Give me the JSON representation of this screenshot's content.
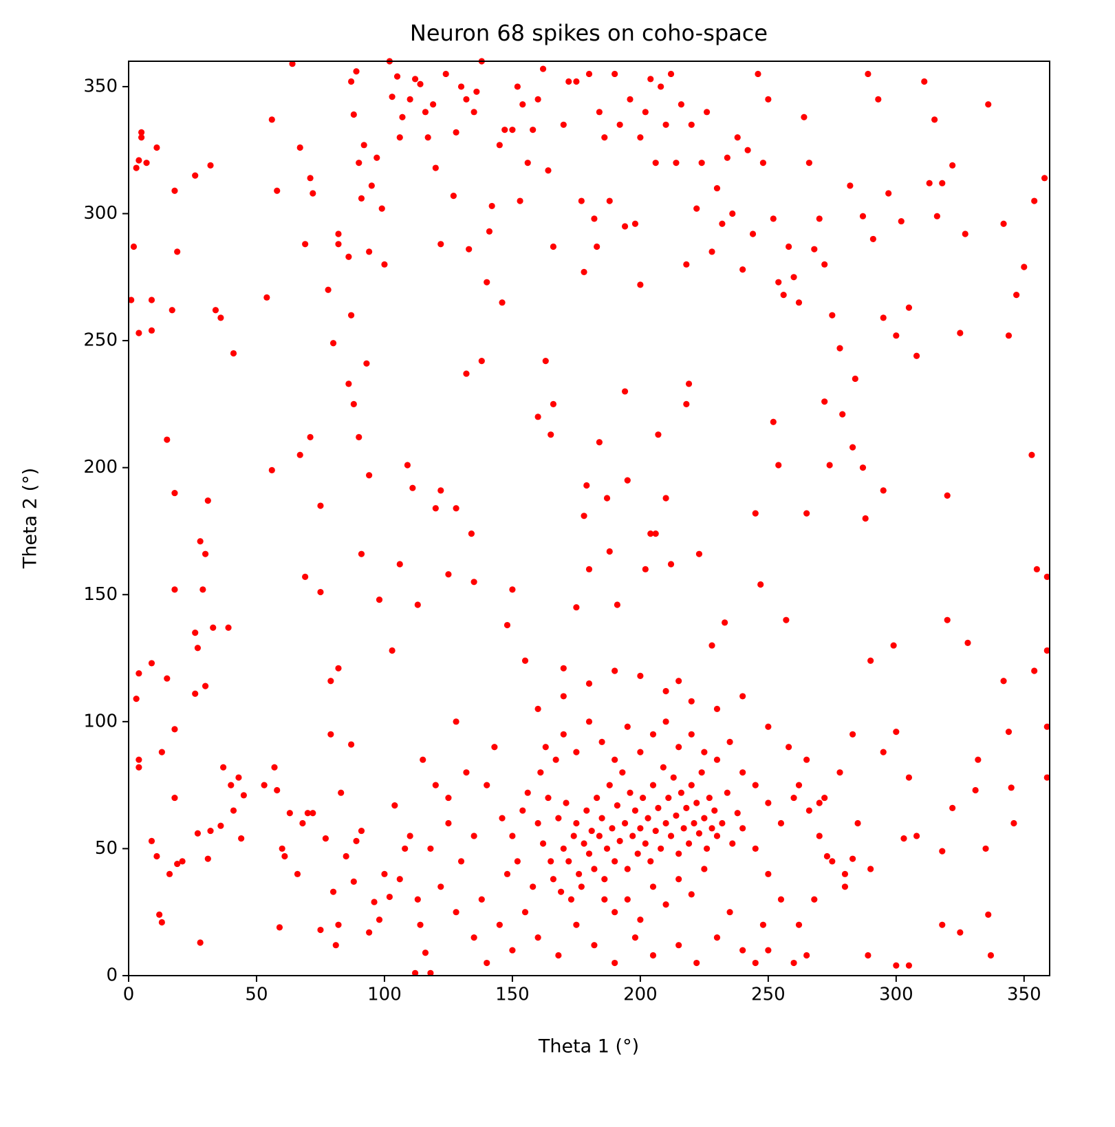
{
  "chart_data": {
    "type": "scatter",
    "title": "Neuron 68 spikes on coho-space",
    "x_label": "Theta 1 (°)",
    "y_label": "Theta 2 (°)",
    "color": "#ff0000",
    "xlim": [
      0,
      360
    ],
    "ylim": [
      0,
      360
    ],
    "xticks": [
      0,
      50,
      100,
      150,
      200,
      250,
      300,
      350
    ],
    "yticks": [
      0,
      50,
      100,
      150,
      200,
      250,
      300,
      350
    ],
    "grid": false,
    "x": [
      3,
      5,
      5,
      4,
      7,
      11,
      2,
      1,
      9,
      9,
      4,
      19,
      18,
      17,
      26,
      32,
      34,
      36,
      41,
      54,
      56,
      58,
      64,
      67,
      69,
      71,
      72,
      78,
      80,
      82,
      82,
      86,
      87,
      88,
      89,
      90,
      91,
      92,
      94,
      95,
      97,
      99,
      100,
      102,
      103,
      105,
      106,
      107,
      110,
      112,
      114,
      116,
      117,
      119,
      120,
      122,
      124,
      127,
      128,
      130,
      132,
      133,
      135,
      136,
      138,
      141,
      142,
      145,
      147,
      150,
      152,
      153,
      154,
      156,
      158,
      160,
      162,
      164,
      166,
      170,
      172,
      175,
      177,
      178,
      180,
      182,
      184,
      186,
      188,
      190,
      192,
      194,
      196,
      198,
      200,
      202,
      204,
      206,
      208,
      210,
      212,
      214,
      216,
      218,
      220,
      222,
      224,
      226,
      228,
      230,
      232,
      234,
      236,
      238,
      240,
      242,
      244,
      246,
      248,
      250,
      252,
      254,
      256,
      258,
      260,
      262,
      264,
      266,
      268,
      270,
      272,
      275,
      278,
      282,
      284,
      287,
      289,
      291,
      293,
      295,
      297,
      300,
      302,
      305,
      308,
      311,
      313,
      315,
      316,
      318,
      320,
      322,
      325,
      327,
      336,
      342,
      344,
      347,
      350,
      354,
      358,
      15,
      18,
      18,
      28,
      29,
      30,
      31,
      33,
      39,
      56,
      67,
      69,
      71,
      75,
      75,
      79,
      82,
      86,
      87,
      88,
      90,
      91,
      93,
      94,
      98,
      103,
      106,
      109,
      111,
      113,
      120,
      122,
      125,
      128,
      132,
      134,
      135,
      138,
      140,
      146,
      148,
      150,
      155,
      160,
      163,
      165,
      166,
      170,
      175,
      178,
      179,
      180,
      183,
      184,
      187,
      188,
      191,
      194,
      195,
      200,
      202,
      204,
      206,
      207,
      210,
      212,
      215,
      218,
      219,
      223,
      228,
      233,
      245,
      247,
      252,
      254,
      257,
      265,
      272,
      274,
      279,
      283,
      287,
      288,
      290,
      295,
      299,
      320,
      328,
      353,
      355,
      359,
      359,
      354,
      342,
      3,
      4,
      4,
      4,
      9,
      9,
      11,
      12,
      13,
      13,
      15,
      16,
      18,
      18,
      19,
      21,
      26,
      26,
      27,
      27,
      28,
      30,
      31,
      32,
      36,
      37,
      40,
      41,
      43,
      44,
      45,
      53,
      57,
      58,
      59,
      60,
      61,
      63,
      66,
      68,
      70,
      72,
      75,
      77,
      79,
      80,
      81,
      82,
      83,
      85,
      87,
      88,
      89,
      91,
      94,
      96,
      98,
      100,
      102,
      104,
      106,
      108,
      110,
      112,
      114,
      116,
      118,
      170,
      172,
      174,
      175,
      176,
      178,
      179,
      180,
      181,
      182,
      183,
      184,
      185,
      186,
      187,
      188,
      189,
      190,
      191,
      192,
      193,
      194,
      195,
      196,
      197,
      198,
      199,
      200,
      201,
      202,
      203,
      204,
      205,
      206,
      207,
      208,
      209,
      210,
      211,
      212,
      213,
      214,
      215,
      216,
      217,
      218,
      219,
      220,
      221,
      222,
      223,
      224,
      225,
      226,
      227,
      228,
      229,
      230,
      232,
      234,
      236,
      238,
      240,
      160,
      162,
      164,
      165,
      166,
      168,
      169,
      171,
      173,
      177,
      186,
      190,
      195,
      200,
      205,
      210,
      215,
      220,
      225,
      150,
      152,
      154,
      156,
      158,
      161,
      163,
      167,
      170,
      175,
      180,
      185,
      190,
      195,
      200,
      205,
      210,
      215,
      220,
      225,
      230,
      235,
      240,
      245,
      250,
      255,
      260,
      265,
      245,
      250,
      255,
      248,
      240,
      235,
      230,
      222,
      215,
      205,
      198,
      190,
      182,
      175,
      168,
      160,
      155,
      150,
      145,
      140,
      138,
      135,
      130,
      128,
      125,
      122,
      120,
      118,
      115,
      113,
      140,
      143,
      146,
      148,
      135,
      132,
      128,
      125,
      160,
      170,
      180,
      190,
      200,
      210,
      220,
      230,
      240,
      250,
      258,
      262,
      266,
      270,
      275,
      280,
      268,
      262,
      272,
      278,
      283,
      285,
      290,
      295,
      300,
      303,
      305,
      308,
      318,
      318,
      322,
      325,
      331,
      332,
      335,
      336,
      337,
      344,
      346,
      345,
      359,
      359,
      289,
      300,
      305,
      283,
      280,
      273,
      270,
      260,
      265,
      250,
      245
    ],
    "values": [
      318,
      330,
      332,
      321,
      320,
      326,
      287,
      266,
      266,
      254,
      253,
      285,
      309,
      262,
      315,
      319,
      262,
      259,
      245,
      267,
      337,
      309,
      359,
      326,
      288,
      314,
      308,
      270,
      249,
      292,
      288,
      283,
      352,
      339,
      356,
      320,
      306,
      327,
      285,
      311,
      322,
      302,
      280,
      360,
      346,
      354,
      330,
      338,
      345,
      353,
      351,
      340,
      330,
      343,
      318,
      288,
      355,
      307,
      332,
      350,
      345,
      286,
      340,
      348,
      360,
      293,
      303,
      327,
      333,
      333,
      350,
      305,
      343,
      320,
      333,
      345,
      357,
      317,
      287,
      335,
      352,
      352,
      305,
      277,
      355,
      298,
      340,
      330,
      305,
      355,
      335,
      295,
      345,
      296,
      330,
      340,
      353,
      320,
      350,
      335,
      355,
      320,
      343,
      280,
      335,
      302,
      320,
      340,
      285,
      310,
      296,
      322,
      300,
      330,
      278,
      325,
      292,
      355,
      320,
      345,
      298,
      273,
      268,
      287,
      275,
      265,
      338,
      320,
      286,
      298,
      280,
      260,
      247,
      311,
      235,
      299,
      355,
      290,
      345,
      259,
      308,
      252,
      297,
      263,
      244,
      352,
      312,
      337,
      299,
      312,
      189,
      319,
      253,
      292,
      343,
      296,
      252,
      268,
      279,
      305,
      314,
      211,
      190,
      152,
      171,
      152,
      166,
      187,
      137,
      137,
      199,
      205,
      157,
      212,
      185,
      151,
      116,
      121,
      233,
      260,
      225,
      212,
      166,
      241,
      197,
      148,
      128,
      162,
      201,
      192,
      146,
      184,
      191,
      158,
      184,
      237,
      174,
      155,
      242,
      273,
      265,
      138,
      152,
      124,
      220,
      242,
      213,
      225,
      121,
      145,
      181,
      193,
      160,
      287,
      210,
      188,
      167,
      146,
      230,
      195,
      272,
      160,
      174,
      174,
      213,
      188,
      162,
      116,
      225,
      233,
      166,
      130,
      139,
      182,
      154,
      218,
      201,
      140,
      182,
      226,
      201,
      221,
      208,
      200,
      180,
      124,
      191,
      130,
      140,
      131,
      205,
      160,
      157,
      128,
      120,
      116,
      109,
      119,
      85,
      82,
      123,
      53,
      47,
      24,
      21,
      88,
      117,
      40,
      97,
      70,
      44,
      45,
      135,
      111,
      129,
      56,
      13,
      114,
      46,
      57,
      59,
      82,
      75,
      65,
      78,
      54,
      71,
      75,
      82,
      73,
      19,
      50,
      47,
      64,
      40,
      60,
      64,
      64,
      18,
      54,
      95,
      33,
      12,
      20,
      72,
      47,
      91,
      37,
      53,
      57,
      17,
      29,
      22,
      40,
      31,
      67,
      38,
      50,
      55,
      1,
      20,
      9,
      1,
      50,
      45,
      55,
      60,
      40,
      52,
      65,
      48,
      57,
      42,
      70,
      55,
      62,
      38,
      50,
      75,
      58,
      45,
      67,
      53,
      80,
      60,
      42,
      72,
      55,
      65,
      48,
      58,
      70,
      52,
      62,
      45,
      75,
      57,
      66,
      50,
      82,
      60,
      70,
      55,
      78,
      63,
      48,
      72,
      58,
      66,
      52,
      75,
      60,
      68,
      56,
      80,
      62,
      50,
      70,
      58,
      65,
      55,
      60,
      72,
      52,
      64,
      58,
      60,
      52,
      70,
      45,
      38,
      62,
      33,
      68,
      30,
      35,
      30,
      25,
      30,
      22,
      35,
      28,
      38,
      32,
      42,
      55,
      45,
      65,
      72,
      35,
      80,
      90,
      85,
      95,
      88,
      100,
      92,
      85,
      98,
      88,
      95,
      100,
      90,
      95,
      88,
      85,
      92,
      80,
      75,
      68,
      60,
      70,
      85,
      50,
      40,
      30,
      20,
      10,
      25,
      15,
      5,
      12,
      8,
      15,
      5,
      12,
      20,
      8,
      15,
      25,
      10,
      20,
      5,
      30,
      15,
      45,
      25,
      60,
      35,
      75,
      50,
      85,
      30,
      75,
      90,
      62,
      40,
      55,
      80,
      100,
      70,
      105,
      110,
      115,
      120,
      118,
      112,
      108,
      105,
      110,
      98,
      90,
      75,
      65,
      55,
      45,
      35,
      30,
      20,
      70,
      80,
      95,
      60,
      42,
      88,
      96,
      54,
      78,
      55,
      49,
      20,
      66,
      17,
      73,
      85,
      50,
      24,
      8,
      96,
      60,
      74,
      98,
      78,
      8,
      4,
      4,
      46,
      40,
      47,
      68,
      5,
      8,
      10,
      5
    ]
  }
}
